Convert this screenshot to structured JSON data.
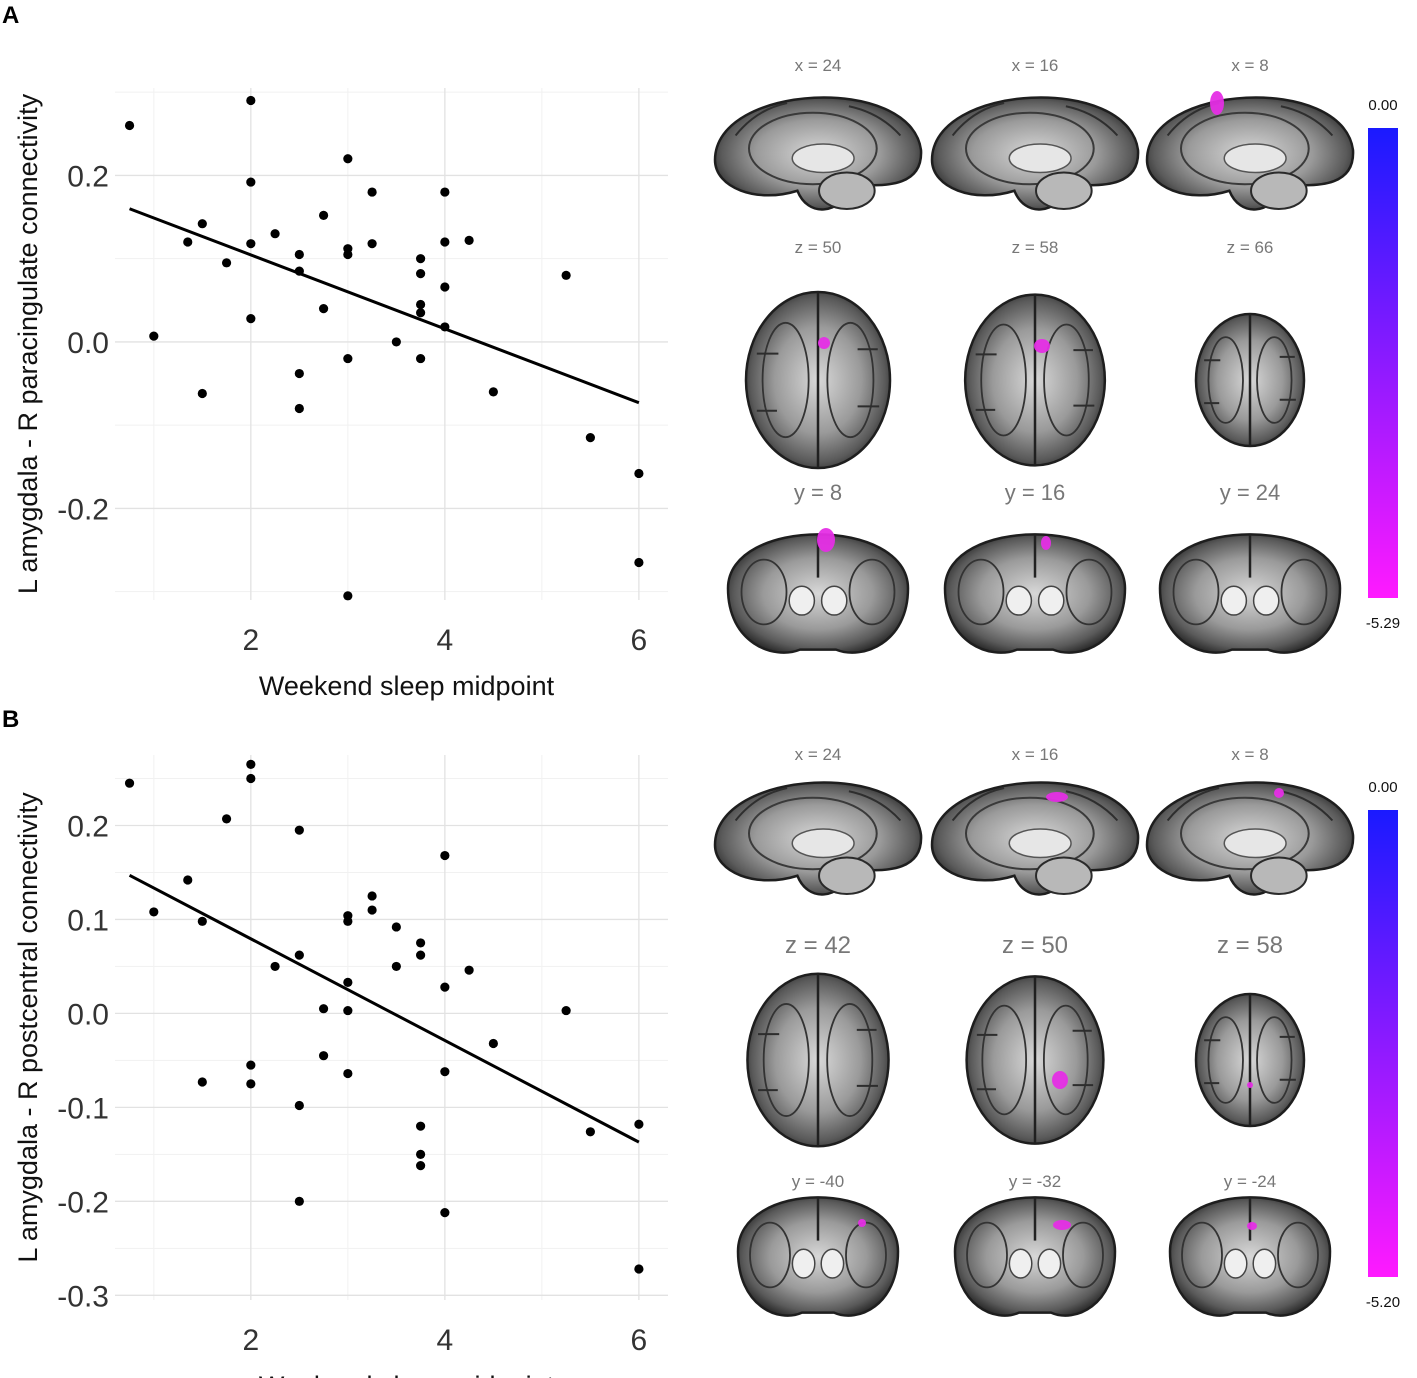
{
  "panels": [
    {
      "letter": "A"
    },
    {
      "letter": "B"
    }
  ],
  "chart_data": [
    {
      "type": "scatter",
      "xlabel": "Weekend sleep midpoint",
      "ylabel": "L amygdala - R paracingulate connectivity",
      "xlim": [
        0.6,
        6.3
      ],
      "ylim": [
        -0.31,
        0.305
      ],
      "xticks": [
        2,
        4,
        6
      ],
      "yticks": [
        -0.2,
        0.0,
        0.2
      ],
      "ytick_labels": [
        "-0.2",
        "0.0",
        "0.2"
      ],
      "grid": true,
      "points": [
        [
          0.75,
          0.26
        ],
        [
          1.0,
          0.007
        ],
        [
          1.35,
          0.12
        ],
        [
          1.5,
          0.142
        ],
        [
          1.5,
          -0.062
        ],
        [
          1.75,
          0.095
        ],
        [
          2.0,
          0.29
        ],
        [
          2.0,
          0.192
        ],
        [
          2.0,
          0.118
        ],
        [
          2.0,
          0.028
        ],
        [
          2.25,
          0.13
        ],
        [
          2.5,
          0.105
        ],
        [
          2.5,
          0.085
        ],
        [
          2.5,
          -0.038
        ],
        [
          2.5,
          -0.08
        ],
        [
          2.75,
          0.152
        ],
        [
          2.75,
          0.04
        ],
        [
          3.0,
          0.22
        ],
        [
          3.0,
          0.112
        ],
        [
          3.0,
          0.105
        ],
        [
          3.0,
          -0.02
        ],
        [
          3.0,
          -0.305
        ],
        [
          3.25,
          0.18
        ],
        [
          3.25,
          0.118
        ],
        [
          3.5,
          0.0
        ],
        [
          3.75,
          0.1
        ],
        [
          3.75,
          0.082
        ],
        [
          3.75,
          0.045
        ],
        [
          3.75,
          0.035
        ],
        [
          3.75,
          -0.02
        ],
        [
          4.0,
          0.18
        ],
        [
          4.0,
          0.12
        ],
        [
          4.0,
          0.066
        ],
        [
          4.0,
          0.018
        ],
        [
          4.25,
          0.122
        ],
        [
          4.5,
          -0.06
        ],
        [
          5.25,
          0.08
        ],
        [
          5.5,
          -0.115
        ],
        [
          6.0,
          -0.158
        ],
        [
          6.0,
          -0.265
        ]
      ],
      "fit_line": {
        "x": [
          0.75,
          6.0
        ],
        "y": [
          0.16,
          -0.073
        ]
      }
    },
    {
      "type": "scatter",
      "xlabel": "Weekend sleep midpoint",
      "ylabel": "L amygdala - R postcentral connectivity",
      "xlim": [
        0.6,
        6.3
      ],
      "ylim": [
        -0.305,
        0.275
      ],
      "xticks": [
        2,
        4,
        6
      ],
      "yticks": [
        -0.3,
        -0.2,
        -0.1,
        0.0,
        0.1,
        0.2
      ],
      "ytick_labels": [
        "-0.3",
        "-0.2",
        "-0.1",
        "0.0",
        "0.1",
        "0.2"
      ],
      "grid": true,
      "points": [
        [
          0.75,
          0.245
        ],
        [
          1.0,
          0.108
        ],
        [
          1.35,
          0.142
        ],
        [
          1.5,
          0.098
        ],
        [
          1.5,
          -0.073
        ],
        [
          1.75,
          0.207
        ],
        [
          2.0,
          0.265
        ],
        [
          2.0,
          0.25
        ],
        [
          2.0,
          -0.055
        ],
        [
          2.0,
          -0.075
        ],
        [
          2.25,
          0.05
        ],
        [
          2.5,
          0.195
        ],
        [
          2.5,
          0.062
        ],
        [
          2.5,
          -0.098
        ],
        [
          2.5,
          -0.2
        ],
        [
          2.75,
          0.005
        ],
        [
          2.75,
          -0.045
        ],
        [
          3.0,
          0.104
        ],
        [
          3.0,
          0.098
        ],
        [
          3.0,
          0.033
        ],
        [
          3.0,
          0.003
        ],
        [
          3.0,
          -0.064
        ],
        [
          3.25,
          0.125
        ],
        [
          3.25,
          0.11
        ],
        [
          3.5,
          0.092
        ],
        [
          3.5,
          0.05
        ],
        [
          3.75,
          0.075
        ],
        [
          3.75,
          0.062
        ],
        [
          3.75,
          -0.12
        ],
        [
          3.75,
          -0.15
        ],
        [
          3.75,
          -0.162
        ],
        [
          4.0,
          0.168
        ],
        [
          4.0,
          0.028
        ],
        [
          4.0,
          -0.062
        ],
        [
          4.0,
          -0.212
        ],
        [
          4.25,
          0.046
        ],
        [
          4.5,
          -0.032
        ],
        [
          5.25,
          0.003
        ],
        [
          5.5,
          -0.126
        ],
        [
          6.0,
          -0.118
        ],
        [
          6.0,
          -0.272
        ]
      ],
      "fit_line": {
        "x": [
          0.75,
          6.0
        ],
        "y": [
          0.147,
          -0.137
        ]
      }
    }
  ],
  "brain_panels": [
    {
      "labels": [
        [
          "x = 24",
          "x = 16",
          "x = 8"
        ],
        [
          "z = 50",
          "z = 58",
          "z = 66"
        ],
        [
          "y = 8",
          "y = 16",
          "y = 24"
        ]
      ],
      "colorbar": {
        "max_label": "0.00",
        "min_label": "-5.29",
        "colors": [
          "#1a1aff",
          "#ff1aff"
        ]
      }
    },
    {
      "labels": [
        [
          "x = 24",
          "x = 16",
          "x = 8"
        ],
        [
          "z = 42",
          "z = 50",
          "z = 58"
        ],
        [
          "y = -40",
          "y = -32",
          "y = -24"
        ]
      ],
      "colorbar": {
        "max_label": "0.00",
        "min_label": "-5.20",
        "colors": [
          "#1a1aff",
          "#ff1aff"
        ]
      }
    }
  ]
}
